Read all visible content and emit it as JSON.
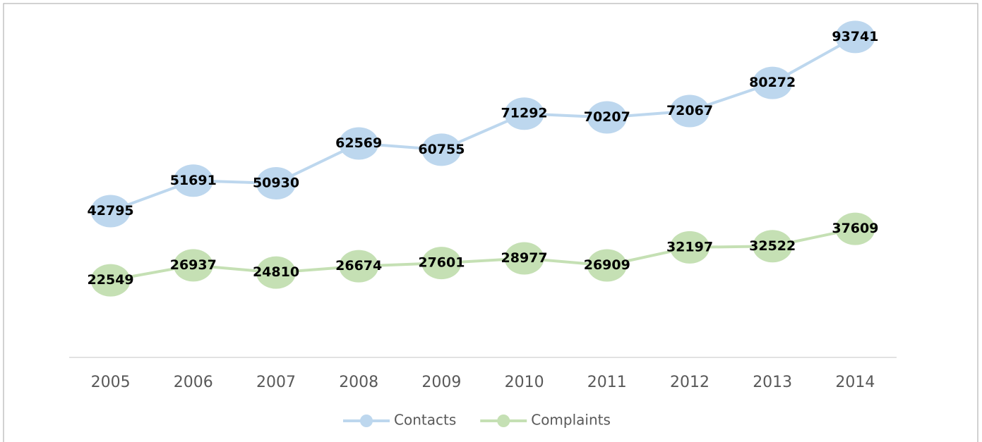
{
  "chart_data": {
    "type": "line",
    "categories": [
      "2005",
      "2006",
      "2007",
      "2008",
      "2009",
      "2010",
      "2011",
      "2012",
      "2013",
      "2014"
    ],
    "series": [
      {
        "name": "Contacts",
        "color": "#bdd7ee",
        "values": [
          42795,
          51691,
          50930,
          62569,
          60755,
          71292,
          70207,
          72067,
          80272,
          93741
        ]
      },
      {
        "name": "Complaints",
        "color": "#c5e0b4",
        "values": [
          22549,
          26937,
          24810,
          26674,
          27601,
          28977,
          26909,
          32197,
          32522,
          37609
        ]
      }
    ],
    "ylim": [
      0,
      100000
    ],
    "legend": "bottom"
  }
}
